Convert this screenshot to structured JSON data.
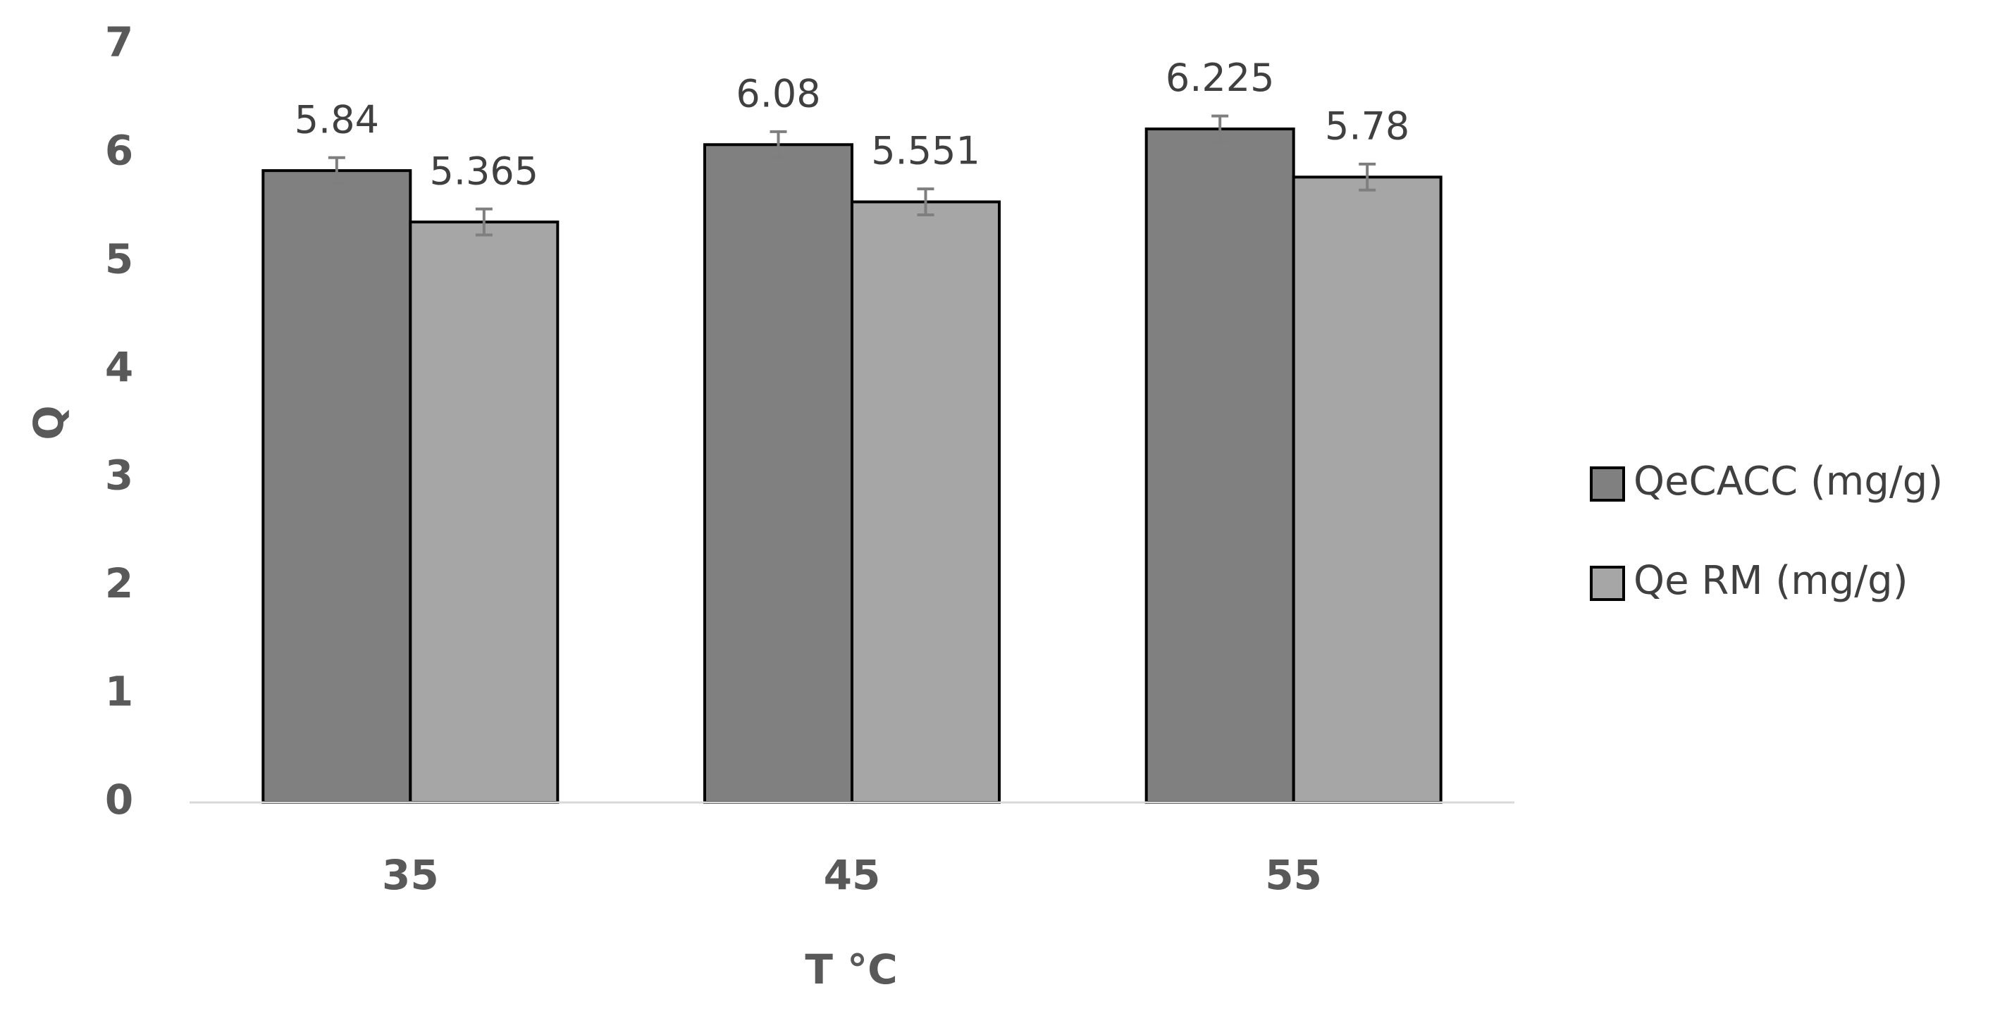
{
  "chart_data": {
    "type": "bar",
    "x_label": "T °C",
    "y_label": "Q",
    "categories": [
      "35",
      "45",
      "55"
    ],
    "series": [
      {
        "name": "QeCACC (mg/g)",
        "color": "#808080",
        "values": [
          5.84,
          6.08,
          6.225
        ],
        "errors": [
          0.12,
          0.12,
          0.12
        ]
      },
      {
        "name": "Qe RM (mg/g)",
        "color": "#a6a6a6",
        "values": [
          5.365,
          5.551,
          5.78
        ],
        "errors": [
          0.12,
          0.12,
          0.12
        ]
      }
    ],
    "ylim": [
      0,
      7
    ],
    "yticks": [
      0,
      1,
      2,
      3,
      4,
      5,
      6,
      7
    ],
    "grid": false,
    "legend": "right"
  }
}
